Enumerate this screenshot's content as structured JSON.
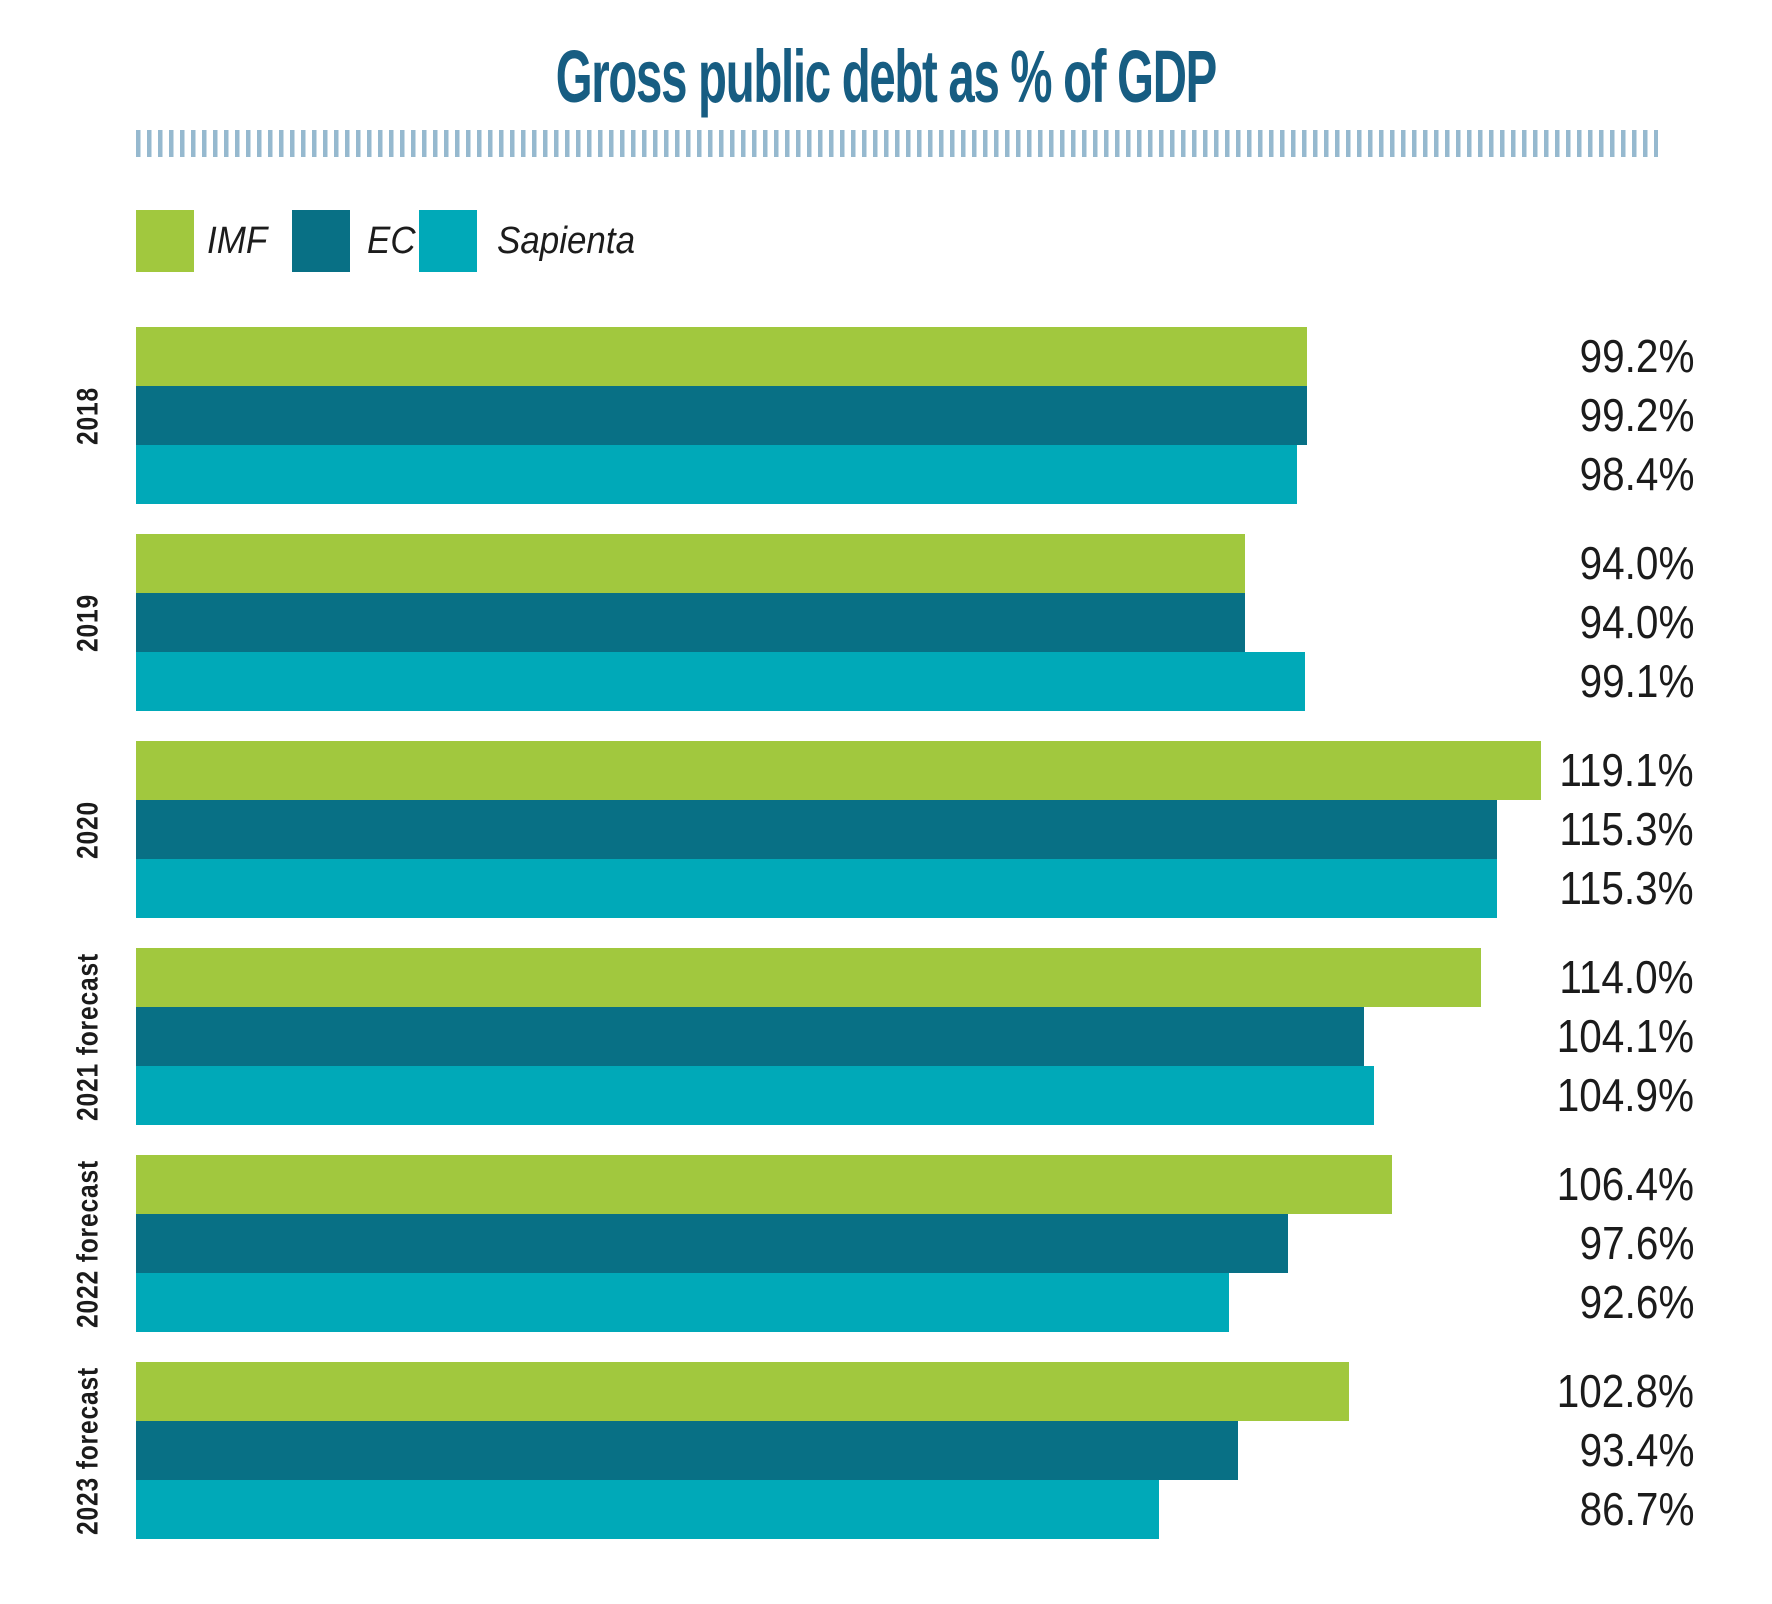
{
  "title": "Gross public debt as % of GDP",
  "colors": {
    "title_blue": "#175d82",
    "ruler_dash": "#96b9cf",
    "text_black": "#1b1b1b",
    "imf_green": "#a1c83e",
    "ec_teal": "#087085",
    "sapienta_cyan": "#00a9b8",
    "background": "#ffffff"
  },
  "legend": {
    "items": [
      {
        "label": "IMF",
        "color": "#a1c83e"
      },
      {
        "label": "EC",
        "color": "#087085"
      },
      {
        "label": "Sapienta",
        "color": "#00a9b8"
      }
    ]
  },
  "chart_data": {
    "type": "bar",
    "orientation": "horizontal",
    "title": "Gross public debt as % of GDP",
    "xlabel": "",
    "ylabel": "",
    "xlim": [
      0,
      125
    ],
    "grid": false,
    "legend_position": "top-left",
    "value_label_position": "right-aligned column",
    "categories": [
      "2018",
      "2019",
      "2020",
      "2021 forecast",
      "2022 forecast",
      "2023 forecast"
    ],
    "series": [
      {
        "name": "IMF",
        "color": "#a1c83e",
        "values": [
          99.2,
          94.0,
          119.1,
          114.0,
          106.4,
          102.8
        ],
        "labels": [
          "99.2%",
          "94.0%",
          "119.1%",
          "114.0%",
          "106.4%",
          "102.8%"
        ]
      },
      {
        "name": "EC",
        "color": "#087085",
        "values": [
          99.2,
          94.0,
          115.3,
          104.1,
          97.6,
          93.4
        ],
        "labels": [
          "99.2%",
          "94.0%",
          "115.3%",
          "104.1%",
          "97.6%",
          "93.4%"
        ]
      },
      {
        "name": "Sapienta",
        "color": "#00a9b8",
        "values": [
          98.4,
          99.1,
          115.3,
          104.9,
          92.6,
          86.7
        ],
        "labels": [
          "98.4%",
          "99.1%",
          "115.3%",
          "104.9%",
          "92.6%",
          "86.7%"
        ]
      }
    ]
  }
}
